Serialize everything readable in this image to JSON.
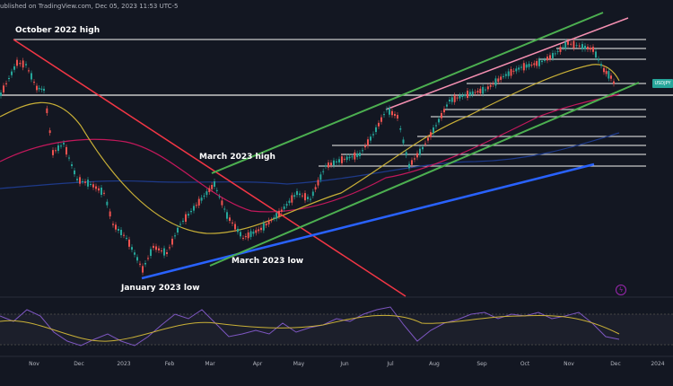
{
  "header": {
    "source_text": "ublished on TradingView.com, Dec 05, 2023 11:53 UTC-5"
  },
  "annotations": {
    "october_high": "October 2022 high",
    "march_high": "March 2023 high",
    "march_low": "March 2023 low",
    "january_low": "January 2023 low"
  },
  "price_tag": {
    "label": "USDJPY"
  },
  "x_axis": {
    "labels": [
      "Nov",
      "Dec",
      "2023",
      "Feb",
      "Mar",
      "Apr",
      "May",
      "Jun",
      "Jul",
      "Aug",
      "Sep",
      "Oct",
      "Nov",
      "Dec",
      "2024"
    ]
  },
  "colors": {
    "background": "#131722",
    "up_candle": "#26a69a",
    "down_candle": "#ef5350",
    "green_channel": "#4caf50",
    "pink_line": "#f48fb1",
    "red_trend": "#f23645",
    "blue_trend": "#2962ff",
    "ma_yellow": "#c9b037",
    "ma_red": "#c2185b",
    "ma_blue": "#1e3a8a",
    "rsi_line": "#7e57c2"
  }
}
